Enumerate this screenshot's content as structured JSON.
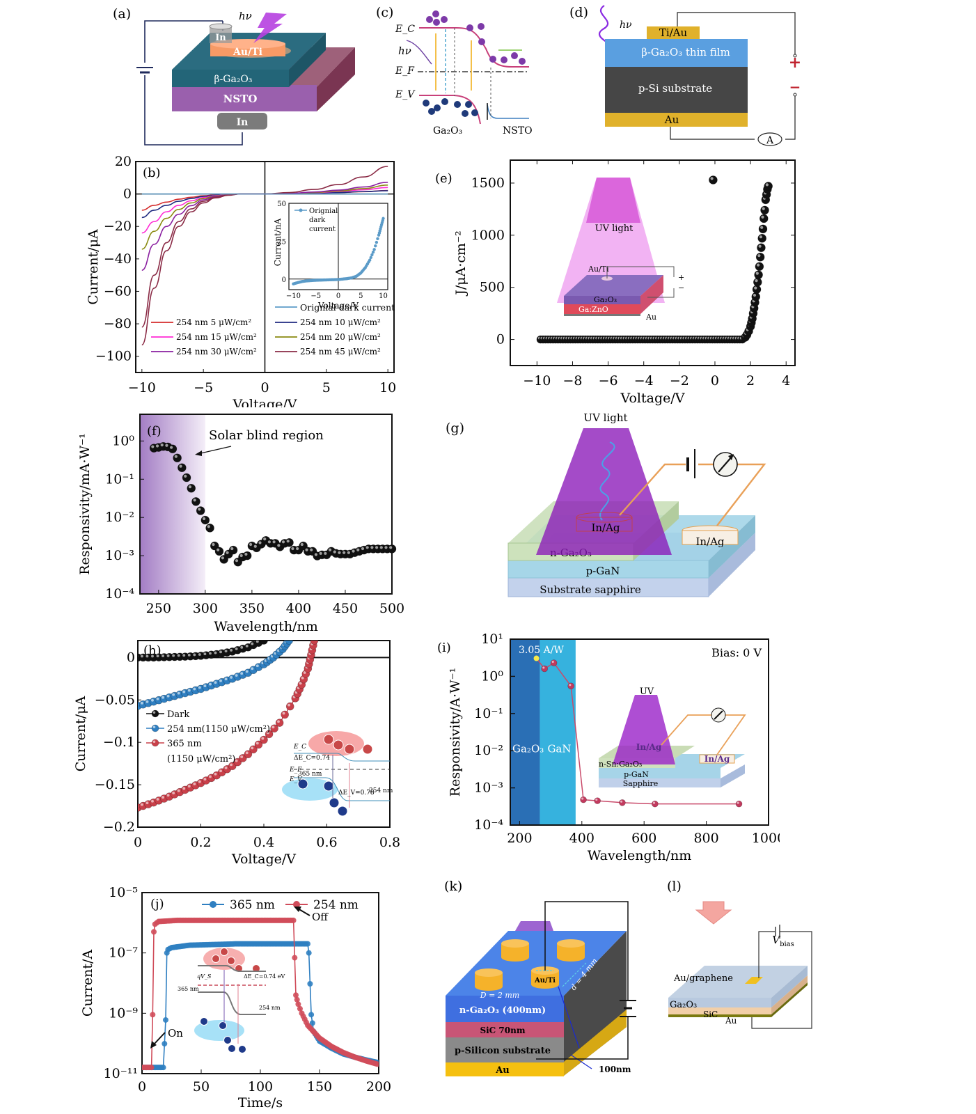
{
  "figure": {
    "panels": {
      "a": {
        "label": "(a)",
        "hv": "hν",
        "layers": {
          "top_contact": "In",
          "electrode": "Au/Ti",
          "film": "β-Ga₂O₃",
          "substrate": "NSTO",
          "bottom_contact": "In"
        }
      },
      "c": {
        "label": "(c)",
        "ec": "E_C",
        "ef": "E_F",
        "ev": "E_V",
        "hv": "hν",
        "left_material": "Ga₂O₃",
        "right_material": "NSTO"
      },
      "d": {
        "label": "(d)",
        "hv": "hν",
        "layers": {
          "contact": "Ti/Au",
          "film": "β-Ga₂O₃ thin film",
          "substrate": "p-Si substrate",
          "bottom": "Au"
        },
        "ammeter": "A",
        "plus": "+",
        "minus": "−"
      },
      "e_inset": {
        "uv": "UV light",
        "electrode": "Au/Ti",
        "film": "Ga₂O₃",
        "substrate": "Ga:ZnO",
        "bottom": "Au",
        "plus": "+",
        "minus": "−"
      },
      "f": {
        "annotation": "Solar blind region"
      },
      "g": {
        "label": "(g)",
        "uv": "UV light",
        "contact1": "In/Ag",
        "contact2": "In/Ag",
        "layers": {
          "film": "n-Ga₂O₃",
          "middle": "p-GaN",
          "substrate": "Substrate sapphire"
        }
      },
      "h_inset": {
        "ec": "E_C",
        "ef": "E_F",
        "ev": "E_V",
        "dec": "ΔE_C=0.74",
        "dev": "ΔE_V=0.78",
        "w365": "365 nm",
        "w254": "254 nm"
      },
      "i": {
        "peak_label": "3.05 A/W",
        "bias": "Bias: 0 V",
        "band_left": "Ga₂O₃",
        "band_right": "GaN",
        "inset": {
          "uv": "UV",
          "contact1": "In/Ag",
          "contact2": "In/Ag",
          "film": "n-Sn:Ga₂O₃",
          "middle": "p-GaN",
          "substrate": "Sapphire"
        }
      },
      "j_inset": {
        "dec": "ΔE_C=0.74 eV",
        "qvs": "qV_S",
        "w365": "365 nm",
        "w254": "254 nm"
      },
      "k": {
        "label": "(k)",
        "electrode": "Au/Ti",
        "diameter": "D = 2 mm",
        "spacing": "d = 4 mm",
        "layers": {
          "film": "n-Ga₂O₃ (400nm)",
          "buffer": "SiC 70nm",
          "substrate": "p-Silicon substrate",
          "bottom": "Au"
        },
        "thickness": "100nm"
      },
      "l": {
        "label": "(l)",
        "vbias": "V",
        "vbias_sub": "bias",
        "contact": "Au/graphene",
        "layers": {
          "film": "Ga₂O₃",
          "substrate": "SiC",
          "bottom": "Au"
        }
      }
    }
  },
  "chart_data": [
    {
      "id": "b",
      "type": "line",
      "panel_label": "(b)",
      "title": "",
      "xlabel": "Voltage/V",
      "ylabel": "Current/μA",
      "xlim": [
        -10.5,
        10.5
      ],
      "ylim": [
        -110,
        20
      ],
      "xticks": [
        -10,
        -5,
        0,
        5,
        10
      ],
      "yticks": [
        20,
        0,
        -20,
        -40,
        -60,
        -80,
        -100
      ],
      "series": [
        {
          "name": "254 nm 5 μW/cm²",
          "color": "#d42c2c",
          "x": [
            -10,
            -9,
            -8,
            -7,
            -6,
            -5,
            -4,
            -3,
            -2,
            0,
            2,
            4,
            6,
            8,
            10
          ],
          "y": [
            -10,
            -7,
            -5,
            -3.2,
            -2,
            -1.1,
            -0.5,
            -0.15,
            0,
            0,
            0.2,
            0.5,
            0.9,
            1.4,
            2.2
          ]
        },
        {
          "name": "254 nm 10 μW/cm²",
          "color": "#1f2a80",
          "x": [
            -10,
            -9,
            -8,
            -7,
            -6,
            -5,
            -4,
            -3,
            -2,
            0,
            2,
            4,
            6,
            8,
            10
          ],
          "y": [
            -14.5,
            -10,
            -7,
            -4.5,
            -2.8,
            -1.5,
            -0.7,
            -0.2,
            0,
            0,
            0.2,
            0.5,
            0.9,
            1.5,
            2
          ]
        },
        {
          "name": "254 nm 15 μW/cm²",
          "color": "#ff2ad4",
          "x": [
            -10,
            -9,
            -8,
            -7,
            -6,
            -5,
            -4,
            -3,
            -2,
            0,
            2,
            4,
            6,
            8,
            10
          ],
          "y": [
            -24,
            -17,
            -11,
            -7,
            -4.2,
            -2.2,
            -1,
            -0.3,
            0,
            0,
            0.3,
            0.8,
            1.5,
            2.6,
            4
          ]
        },
        {
          "name": "254 nm 20 μW/cm²",
          "color": "#8a8a10",
          "x": [
            -10,
            -9,
            -8,
            -7,
            -6,
            -5,
            -4,
            -3,
            -2,
            0,
            2,
            4,
            6,
            8,
            10
          ],
          "y": [
            -34,
            -23,
            -15,
            -9.5,
            -5.5,
            -2.8,
            -1.2,
            -0.4,
            0,
            0,
            0.3,
            0.9,
            1.8,
            3.3,
            5.5
          ]
        },
        {
          "name": "254 nm 30 μW/cm²",
          "color": "#8a1fa0",
          "x": [
            -10,
            -9,
            -8,
            -7,
            -6,
            -5,
            -4,
            -3,
            -2,
            0,
            2,
            4,
            6,
            8,
            10
          ],
          "y": [
            -47,
            -31,
            -20,
            -12.5,
            -7.2,
            -3.6,
            -1.5,
            -0.5,
            0,
            0,
            0.4,
            1.2,
            2.4,
            4.3,
            7.2
          ]
        },
        {
          "name": "254 nm 45 μW/cm²",
          "color": "#8a2a45",
          "x": [
            -10,
            -9,
            -8,
            -7,
            -6,
            -5,
            -4,
            -3,
            -2,
            0,
            2,
            4,
            6,
            8,
            10
          ],
          "y": [
            -93,
            -58,
            -35,
            -20,
            -11,
            -5.5,
            -2.4,
            -0.8,
            0,
            0,
            0.9,
            2.8,
            5.8,
            10.5,
            17
          ]
        },
        {
          "name": "254 nm 45 μW/cm² (b)",
          "color": "#8a2a45",
          "x": [
            -10,
            -9,
            -8,
            -7,
            -6,
            -5,
            -4,
            -3,
            -2,
            0
          ],
          "y": [
            -82,
            -50,
            -30,
            -17,
            -9.2,
            -4.5,
            -2,
            -0.6,
            0,
            0
          ]
        },
        {
          "name": "Orignial dark current",
          "color": "#5b9bc8",
          "x": [
            -10,
            10
          ],
          "y": [
            0,
            0
          ]
        }
      ],
      "legend": [
        "254 nm 5 μW/cm²",
        "254 nm 10 μW/cm²",
        "254 nm 15 μW/cm²",
        "254 nm 20 μW/cm²",
        "254 nm 30 μW/cm²",
        "254 nm 45 μW/cm²",
        "Orignial dark current"
      ],
      "legend_placement": "bottom",
      "inset": {
        "type": "line",
        "xlabel": "Voltage/V",
        "ylabel": "Current/nA",
        "xlim": [
          -11,
          11
        ],
        "ylim": [
          -7,
          50
        ],
        "xticks": [
          -10,
          -5,
          0,
          5,
          10
        ],
        "yticks": [
          0,
          25,
          50
        ],
        "legend": "Orignial dark current",
        "x": [
          -10,
          -9,
          -8,
          -7,
          -6,
          -5,
          -4,
          -3,
          -2,
          -1,
          0,
          1,
          2,
          3,
          4,
          5,
          6,
          7,
          8,
          9,
          9.5,
          10
        ],
        "y": [
          -3.2,
          -2.3,
          -1.6,
          -1.2,
          -1,
          -0.8,
          -0.7,
          -0.6,
          -0.5,
          -0.4,
          -0.3,
          0,
          0.3,
          0.8,
          1.8,
          4,
          7.5,
          12.5,
          19.5,
          29,
          34.5,
          40
        ]
      }
    },
    {
      "id": "e",
      "type": "scatter",
      "panel_label": "(e)",
      "xlabel": "Voltage/V",
      "ylabel": "J/μA·cm⁻²",
      "xlim": [
        -11.5,
        4.5
      ],
      "ylim": [
        -250,
        1720
      ],
      "xticks": [
        -10,
        -8,
        -6,
        -4,
        -2,
        0,
        2,
        4
      ],
      "yticks": [
        0,
        500,
        1000,
        1500
      ],
      "legend_marker_point": {
        "x": -0.1,
        "y": 1530
      },
      "flat": {
        "x_from": -9.8,
        "x_to": 1.6,
        "y": 0
      },
      "rise": {
        "x": [
          1.7,
          1.8,
          1.9,
          2.0,
          2.05,
          2.1,
          2.15,
          2.2,
          2.25,
          2.3,
          2.35,
          2.4,
          2.45,
          2.5,
          2.55,
          2.6,
          2.65,
          2.7,
          2.75,
          2.8,
          2.85,
          2.9,
          2.95,
          3.0
        ],
        "y": [
          20,
          45,
          80,
          125,
          160,
          200,
          250,
          300,
          355,
          410,
          480,
          550,
          620,
          700,
          790,
          880,
          970,
          1060,
          1160,
          1240,
          1340,
          1390,
          1440,
          1470
        ]
      }
    },
    {
      "id": "f",
      "type": "scatter",
      "panel_label": "(f)",
      "xlabel": "Wavelength/nm",
      "ylabel": "Responsivity/mA·W⁻¹",
      "xscale": "linear",
      "yscale": "log",
      "xlim": [
        230,
        500
      ],
      "ylim": [
        0.0001,
        5
      ],
      "xticks": [
        250,
        300,
        350,
        400,
        450,
        500
      ],
      "yticks": [
        "10⁰",
        "10⁻¹",
        "10⁻²",
        "10⁻³",
        "10⁻⁴"
      ],
      "ytick_values": [
        1,
        0.1,
        0.01,
        0.001,
        0.0001
      ],
      "shaded_region": [
        230,
        300
      ],
      "x": [
        245,
        250,
        255,
        260,
        265,
        270,
        275,
        280,
        285,
        290,
        295,
        300,
        305,
        310,
        315,
        320,
        325,
        330,
        335,
        340,
        345,
        350,
        355,
        360,
        365,
        370,
        375,
        380,
        385,
        390,
        395,
        400,
        405,
        410,
        415,
        420,
        425,
        430,
        435,
        440,
        445,
        450,
        455,
        460,
        465,
        470,
        475,
        480,
        485,
        490,
        495,
        500
      ],
      "y": [
        0.65,
        0.68,
        0.72,
        0.7,
        0.62,
        0.36,
        0.2,
        0.11,
        0.058,
        0.026,
        0.015,
        0.0085,
        0.0053,
        0.0018,
        0.0013,
        0.0008,
        0.0011,
        0.0014,
        0.00068,
        0.00092,
        0.001,
        0.0018,
        0.0016,
        0.002,
        0.0025,
        0.0021,
        0.0021,
        0.0017,
        0.0021,
        0.0022,
        0.0014,
        0.0014,
        0.0018,
        0.0013,
        0.0013,
        0.00098,
        0.00105,
        0.00105,
        0.0013,
        0.00115,
        0.0011,
        0.0011,
        0.0011,
        0.0012,
        0.0013,
        0.0014,
        0.0015,
        0.0015,
        0.0015,
        0.0015,
        0.0015,
        0.0015
      ]
    },
    {
      "id": "h",
      "type": "line",
      "panel_label": "(h)",
      "xlabel": "Voltage/V",
      "ylabel": "Current/μA",
      "xlim": [
        0,
        0.8
      ],
      "ylim": [
        -0.2,
        0.02
      ],
      "xticks": [
        0,
        0.2,
        0.4,
        0.6,
        0.8
      ],
      "yticks": [
        0,
        -0.05,
        -0.1,
        -0.15,
        -0.2
      ],
      "series": [
        {
          "name": "Dark",
          "color": "#111111",
          "x": [
            0,
            0.05,
            0.1,
            0.15,
            0.2,
            0.25,
            0.3,
            0.35,
            0.4
          ],
          "y": [
            0,
            0,
            0.0005,
            0.001,
            0.002,
            0.004,
            0.007,
            0.012,
            0.02
          ]
        },
        {
          "name": "254 nm(1150 μW/cm²)",
          "color": "#2f7fc1",
          "x": [
            0,
            0.05,
            0.1,
            0.15,
            0.2,
            0.25,
            0.3,
            0.35,
            0.4,
            0.43,
            0.46,
            0.48
          ],
          "y": [
            -0.057,
            -0.052,
            -0.047,
            -0.042,
            -0.037,
            -0.031,
            -0.025,
            -0.018,
            -0.008,
            0,
            0.01,
            0.02
          ]
        },
        {
          "name": "365 nm (1150 μW/cm²)",
          "color": "#c9404a",
          "x": [
            0,
            0.05,
            0.1,
            0.15,
            0.2,
            0.25,
            0.3,
            0.35,
            0.4,
            0.45,
            0.5,
            0.52,
            0.54,
            0.55,
            0.56
          ],
          "y": [
            -0.177,
            -0.171,
            -0.164,
            -0.156,
            -0.148,
            -0.139,
            -0.128,
            -0.114,
            -0.097,
            -0.077,
            -0.048,
            -0.032,
            -0.013,
            0.003,
            0.02
          ]
        }
      ],
      "legend": [
        "Dark",
        "254 nm(1150 μW/cm²)",
        "365 nm",
        "(1150 μW/cm²)"
      ],
      "legend_placement": "center-left"
    },
    {
      "id": "i",
      "type": "line",
      "panel_label": "(i)",
      "xlabel": "Wavelength/nm",
      "ylabel": "Responsivity/A·W⁻¹",
      "yscale": "log",
      "xlim": [
        170,
        1000
      ],
      "ylim": [
        0.0001,
        10
      ],
      "xticks": [
        200,
        400,
        600,
        800,
        1000
      ],
      "yticks": [
        "10¹",
        "10⁰",
        "10⁻¹",
        "10⁻²",
        "10⁻³",
        "10⁻⁴"
      ],
      "ytick_values": [
        10,
        1,
        0.1,
        0.01,
        0.001,
        0.0001
      ],
      "bands": [
        {
          "name": "Ga₂O₃",
          "from": 170,
          "to": 265,
          "color": "#2a6fb5"
        },
        {
          "name": "GaN",
          "from": 265,
          "to": 380,
          "color": "#36b2de"
        }
      ],
      "x": [
        254,
        280,
        310,
        365,
        405,
        450,
        530,
        635,
        905
      ],
      "y": [
        3.05,
        1.6,
        2.3,
        0.55,
        0.00048,
        0.00045,
        0.0004,
        0.00037,
        0.00037
      ]
    },
    {
      "id": "j",
      "type": "line",
      "panel_label": "(j)",
      "xlabel": "Time/s",
      "ylabel": "Current/A",
      "yscale": "log",
      "xlim": [
        0,
        200
      ],
      "ylim": [
        1e-11,
        1e-05
      ],
      "xticks": [
        0,
        50,
        100,
        150,
        200
      ],
      "yticks": [
        "10⁻⁵",
        "10⁻⁷",
        "10⁻⁹",
        "10⁻¹¹"
      ],
      "ytick_values": [
        1e-05,
        1e-07,
        1e-09,
        1e-11
      ],
      "series": [
        {
          "name": "365 nm",
          "color": "#2f7fc1",
          "x": [
            0,
            18,
            20,
            21,
            22,
            25,
            40,
            80,
            140,
            141,
            143,
            145,
            150,
            160,
            170,
            180,
            190,
            200
          ],
          "y": [
            1.6e-11,
            1.6e-11,
            6e-10,
            1e-07,
            1.3e-07,
            1.5e-07,
            1.8e-07,
            2e-07,
            2e-07,
            1e-07,
            9e-10,
            2.5e-10,
            1.2e-10,
            7e-11,
            4.5e-11,
            3.5e-11,
            2.8e-11,
            2.3e-11
          ]
        },
        {
          "name": "254 nm",
          "color": "#d04c5a",
          "x": [
            0,
            8,
            9,
            10,
            11,
            14,
            30,
            80,
            128,
            130,
            132,
            135,
            140,
            150,
            160,
            170,
            180,
            190,
            200
          ],
          "y": [
            1.6e-11,
            1.6e-11,
            9e-10,
            5e-07,
            9e-07,
            1.1e-06,
            1.2e-06,
            1.2e-06,
            1.2e-06,
            4e-09,
            2e-09,
            1e-09,
            4e-10,
            1.5e-10,
            8e-11,
            5e-11,
            3.5e-11,
            2.6e-11,
            2e-11
          ]
        }
      ],
      "annotations": [
        "On",
        "Off"
      ],
      "legend": [
        "365 nm",
        "254 nm"
      ],
      "legend_placement": "top"
    }
  ]
}
